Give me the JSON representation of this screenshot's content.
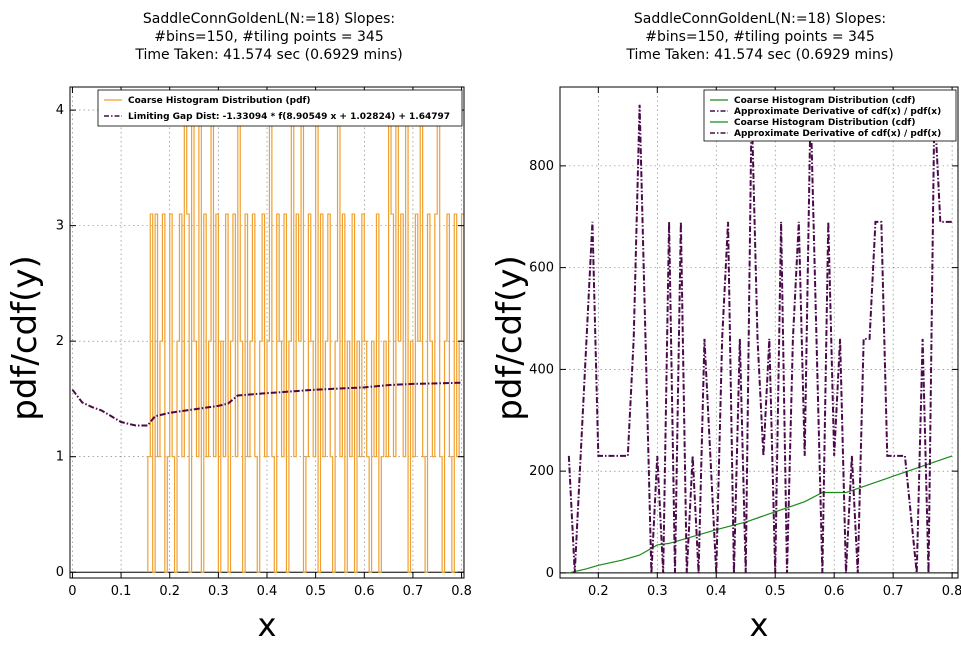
{
  "chart_data": [
    {
      "type": "line",
      "title_lines": [
        "SaddleConnGoldenL(N:=18) Slopes:",
        "#bins=150, #tiling points = 345",
        "Time Taken: 41.574 sec (0.6929 mins)"
      ],
      "xlabel": "x",
      "ylabel": "pdf/cdf(y)",
      "xlim": [
        -0.005,
        0.805
      ],
      "ylim": [
        -0.05,
        4.2
      ],
      "xticks": [
        0,
        0.1,
        0.2,
        0.3,
        0.4,
        0.5,
        0.6,
        0.7,
        0.8
      ],
      "xtick_labels": [
        "0",
        "0.1",
        "0.2",
        "0.3",
        "0.4",
        "0.5",
        "0.6",
        "0.7",
        "0.8"
      ],
      "yticks": [
        0,
        1,
        2,
        3,
        4
      ],
      "ytick_labels": [
        "0",
        "1",
        "2",
        "3",
        "4"
      ],
      "grid": true,
      "legend_position": "top-right",
      "series": [
        {
          "name": "Coarse Histogram Distribution (pdf)",
          "color": "#f0a030",
          "style": "step",
          "x": [
            0.155,
            0.16,
            0.165,
            0.17,
            0.175,
            0.18,
            0.185,
            0.19,
            0.195,
            0.2,
            0.205,
            0.21,
            0.215,
            0.22,
            0.225,
            0.23,
            0.235,
            0.24,
            0.245,
            0.25,
            0.255,
            0.26,
            0.265,
            0.27,
            0.275,
            0.28,
            0.285,
            0.29,
            0.295,
            0.3,
            0.305,
            0.31,
            0.315,
            0.32,
            0.325,
            0.33,
            0.335,
            0.34,
            0.345,
            0.35,
            0.355,
            0.36,
            0.365,
            0.37,
            0.375,
            0.38,
            0.385,
            0.39,
            0.395,
            0.4,
            0.405,
            0.41,
            0.415,
            0.42,
            0.425,
            0.43,
            0.435,
            0.44,
            0.445,
            0.45,
            0.455,
            0.46,
            0.465,
            0.47,
            0.475,
            0.48,
            0.485,
            0.49,
            0.495,
            0.5,
            0.505,
            0.51,
            0.515,
            0.52,
            0.525,
            0.53,
            0.535,
            0.54,
            0.545,
            0.55,
            0.555,
            0.56,
            0.565,
            0.57,
            0.575,
            0.58,
            0.585,
            0.59,
            0.595,
            0.6,
            0.605,
            0.61,
            0.615,
            0.62,
            0.625,
            0.63,
            0.635,
            0.64,
            0.645,
            0.65,
            0.655,
            0.66,
            0.665,
            0.67,
            0.675,
            0.68,
            0.685,
            0.69,
            0.695,
            0.7,
            0.705,
            0.71,
            0.715,
            0.72,
            0.725,
            0.73,
            0.735,
            0.74,
            0.745,
            0.75,
            0.755,
            0.76,
            0.765,
            0.77,
            0.775,
            0.78,
            0.785,
            0.79,
            0.795,
            0.8
          ],
          "y": [
            1.0,
            3.1,
            0.0,
            3.1,
            1.0,
            2.0,
            3.1,
            0.0,
            1.0,
            3.1,
            1.0,
            0.0,
            2.0,
            3.1,
            1.0,
            4.1,
            3.1,
            0.0,
            4.1,
            2.0,
            1.0,
            4.1,
            0.0,
            3.1,
            1.0,
            2.0,
            4.1,
            1.0,
            3.1,
            0.0,
            2.0,
            1.0,
            3.1,
            0.0,
            2.0,
            3.1,
            1.0,
            4.1,
            2.0,
            0.0,
            3.1,
            1.0,
            2.0,
            3.1,
            1.0,
            0.0,
            2.0,
            3.1,
            1.0,
            2.0,
            4.1,
            1.0,
            0.0,
            3.1,
            2.0,
            1.0,
            3.1,
            0.0,
            2.0,
            4.1,
            1.0,
            3.1,
            2.0,
            4.1,
            0.0,
            1.0,
            3.1,
            2.0,
            1.0,
            4.1,
            0.0,
            3.1,
            1.0,
            2.0,
            3.1,
            1.0,
            0.0,
            2.0,
            4.1,
            1.0,
            3.1,
            0.0,
            2.0,
            1.0,
            3.1,
            0.0,
            2.0,
            1.0,
            3.1,
            2.0,
            1.0,
            0.0,
            2.0,
            1.0,
            3.1,
            0.0,
            1.0,
            2.0,
            1.0,
            4.1,
            3.1,
            1.0,
            4.1,
            2.0,
            3.1,
            1.0,
            4.1,
            0.0,
            2.0,
            1.0,
            3.1,
            2.0,
            4.1,
            1.0,
            0.0,
            3.1,
            2.0,
            1.0,
            3.1,
            4.1,
            1.0,
            0.0,
            2.0,
            3.1,
            1.0,
            0.0,
            3.1,
            1.0,
            2.0,
            3.1
          ]
        },
        {
          "name": "Limiting Gap Dist: -1.33094 * f(8.90549 x + 1.02824) + 1.64797",
          "color": "#4a0a4a",
          "style": "dashdot",
          "x": [
            0.0,
            0.02,
            0.04,
            0.06,
            0.08,
            0.1,
            0.13,
            0.155,
            0.16,
            0.17,
            0.2,
            0.25,
            0.3,
            0.32,
            0.34,
            0.4,
            0.5,
            0.6,
            0.65,
            0.7,
            0.8
          ],
          "y": [
            1.58,
            1.47,
            1.43,
            1.4,
            1.35,
            1.3,
            1.27,
            1.27,
            1.3,
            1.35,
            1.38,
            1.41,
            1.44,
            1.46,
            1.53,
            1.55,
            1.58,
            1.6,
            1.62,
            1.63,
            1.64
          ]
        }
      ]
    },
    {
      "type": "line",
      "title_lines": [
        "SaddleConnGoldenL(N:=18) Slopes:",
        "#bins=150, #tiling points = 345",
        "Time Taken: 41.574 sec (0.6929 mins)"
      ],
      "xlabel": "x",
      "ylabel": "pdf/cdf(y)",
      "xlim": [
        0.135,
        0.81
      ],
      "ylim": [
        -10,
        955
      ],
      "xticks": [
        0.2,
        0.3,
        0.4,
        0.5,
        0.6,
        0.7,
        0.8
      ],
      "xtick_labels": [
        "0.2",
        "0.3",
        "0.4",
        "0.5",
        "0.6",
        "0.7",
        "0.8"
      ],
      "yticks": [
        0,
        200,
        400,
        600,
        800
      ],
      "ytick_labels": [
        "0",
        "200",
        "400",
        "600",
        "800"
      ],
      "grid": true,
      "legend_position": "top-right",
      "legend_entries": [
        {
          "label": "Coarse Histogram Distribution (cdf)",
          "color": "#1a8a1a",
          "style": "solid"
        },
        {
          "label": "Approximate Derivative of cdf(x) / pdf(x)",
          "color": "#4a0a4a",
          "style": "dashdot"
        },
        {
          "label": "Coarse Histogram Distribution (cdf)",
          "color": "#1a8a1a",
          "style": "solid"
        },
        {
          "label": "Approximate Derivative of cdf(x) / pdf(x)",
          "color": "#4a0a4a",
          "style": "dashdot"
        }
      ],
      "series": [
        {
          "name": "Coarse Histogram Distribution (cdf)",
          "color": "#1a8a1a",
          "style": "solid",
          "x": [
            0.15,
            0.18,
            0.2,
            0.24,
            0.27,
            0.3,
            0.32,
            0.35,
            0.4,
            0.45,
            0.5,
            0.55,
            0.58,
            0.62,
            0.65,
            0.7,
            0.75,
            0.8
          ],
          "y": [
            0,
            8,
            15,
            25,
            35,
            55,
            58,
            68,
            85,
            100,
            120,
            140,
            158,
            158,
            170,
            190,
            210,
            230
          ]
        },
        {
          "name": "Approximate Derivative of cdf(x) / pdf(x)",
          "color": "#4a0a4a",
          "style": "dashdot",
          "x": [
            0.15,
            0.16,
            0.18,
            0.19,
            0.2,
            0.25,
            0.26,
            0.27,
            0.28,
            0.29,
            0.3,
            0.31,
            0.32,
            0.33,
            0.34,
            0.35,
            0.36,
            0.37,
            0.38,
            0.39,
            0.4,
            0.41,
            0.42,
            0.43,
            0.44,
            0.45,
            0.46,
            0.47,
            0.48,
            0.49,
            0.5,
            0.51,
            0.52,
            0.53,
            0.54,
            0.55,
            0.56,
            0.57,
            0.58,
            0.59,
            0.6,
            0.61,
            0.62,
            0.63,
            0.64,
            0.65,
            0.66,
            0.67,
            0.68,
            0.69,
            0.7,
            0.72,
            0.74,
            0.75,
            0.76,
            0.77,
            0.78,
            0.79,
            0.8
          ],
          "y": [
            230,
            0,
            460,
            690,
            230,
            230,
            460,
            920,
            460,
            0,
            230,
            0,
            690,
            0,
            690,
            0,
            230,
            0,
            460,
            230,
            0,
            460,
            690,
            0,
            460,
            0,
            920,
            460,
            230,
            460,
            0,
            690,
            0,
            460,
            690,
            230,
            920,
            460,
            0,
            690,
            230,
            460,
            0,
            230,
            0,
            460,
            460,
            690,
            690,
            230,
            230,
            230,
            0,
            460,
            0,
            920,
            690,
            690,
            690
          ]
        }
      ]
    }
  ]
}
